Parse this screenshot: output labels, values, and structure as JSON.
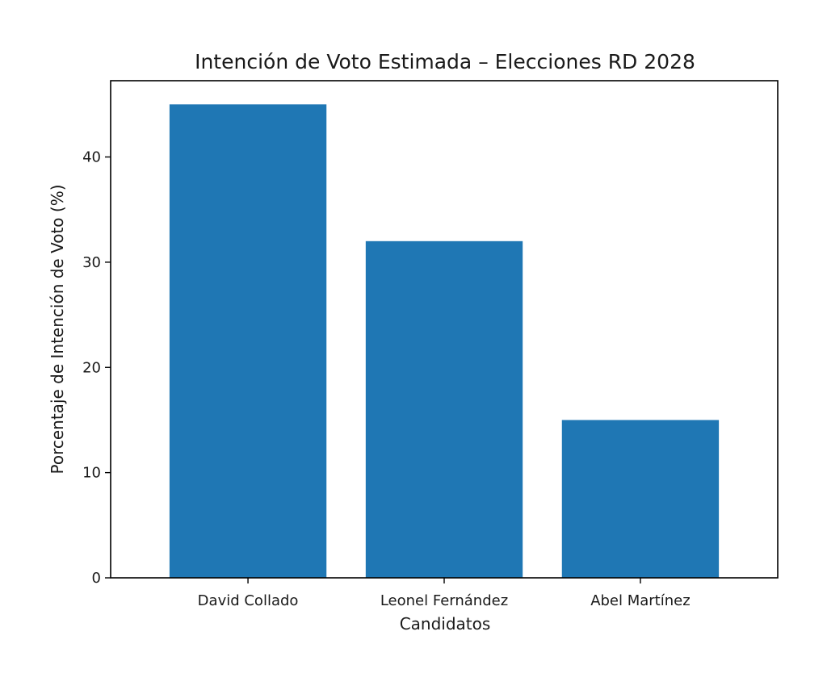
{
  "chart_data": {
    "type": "bar",
    "title": "Intención de Voto Estimada – Elecciones RD 2028",
    "xlabel": "Candidatos",
    "ylabel": "Porcentaje de Intención de Voto (%)",
    "categories": [
      "David Collado",
      "Leonel Fernández",
      "Abel Martínez"
    ],
    "values": [
      45,
      32,
      15
    ],
    "ylim": [
      0,
      47.25
    ],
    "yticks": [
      0,
      10,
      20,
      30,
      40
    ],
    "grid": false,
    "legend": "none",
    "bar_color": "#1f77b4"
  }
}
